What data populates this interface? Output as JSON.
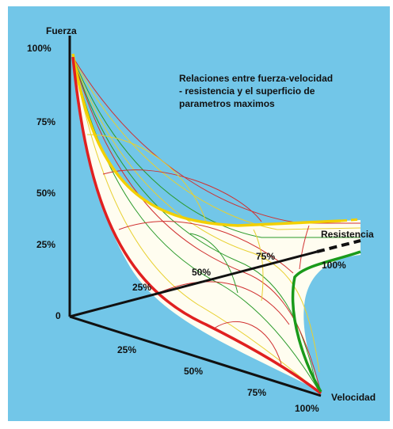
{
  "title": [
    "Relaciones entre fuerza-velocidad",
    " - resistencia y el superficio de",
    "parametros maximos"
  ],
  "fuerza": {
    "label": "Fuerza",
    "ticks": [
      "100%",
      "75%",
      "50%",
      "25%",
      "0"
    ]
  },
  "velocidad": {
    "label": "Velocidad",
    "ticks": [
      "25%",
      "50%",
      "75%",
      "100%"
    ]
  },
  "resistencia": {
    "label": "Resistencia",
    "ticks": [
      "25%",
      "50%",
      "75%",
      "100%"
    ]
  }
}
